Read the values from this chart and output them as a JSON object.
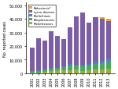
{
  "years": [
    2001,
    2002,
    2003,
    2004,
    2005,
    2006,
    2007,
    2008,
    2009,
    2010,
    2011,
    2012,
    2013
  ],
  "lyme": [
    17029,
    23763,
    21273,
    27013,
    23305,
    19931,
    27444,
    35198,
    38468,
    30158,
    33097,
    30831,
    27203
  ],
  "ehrlichiosis": [
    216,
    203,
    322,
    337,
    506,
    578,
    828,
    961,
    1118,
    1339,
    1506,
    1761,
    1761
  ],
  "anaplasmosis": [
    926,
    1178,
    1525,
    1786,
    1761,
    2283,
    3495,
    2905,
    3026,
    3596,
    4076,
    4677,
    5762
  ],
  "rickettsioses": [
    695,
    733,
    1091,
    1713,
    1936,
    2288,
    2221,
    2563,
    1834,
    1985,
    2802,
    2810,
    3359
  ],
  "babesiosis": [
    0,
    0,
    0,
    0,
    0,
    0,
    0,
    0,
    0,
    0,
    0,
    1124,
    1762
  ],
  "colors": {
    "babesiosis": "#f0a830",
    "lyme": "#7b5ea7",
    "ehrlichiosis": "#4f81bd",
    "anaplasmosis": "#4aa85c",
    "rickettsioses": "#9aad45"
  },
  "legend_labels": [
    "Babesiosis*",
    "Lyme disease",
    "Ehrlichiosis",
    "Anaplasmosis",
    "Rickettsioses"
  ],
  "ylabel": "No. reported cases",
  "ylim": [
    0,
    52000
  ],
  "yticks": [
    0,
    10000,
    20000,
    30000,
    40000,
    50000
  ]
}
